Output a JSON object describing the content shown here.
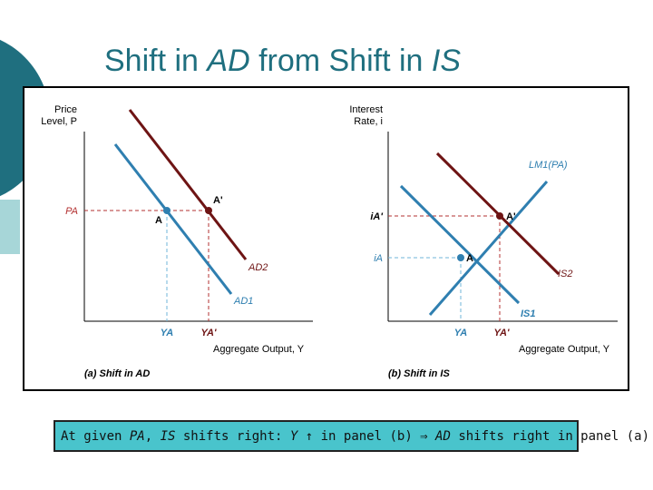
{
  "slide": {
    "title_pre": "Shift in ",
    "title_ad": "AD",
    "title_mid": " from Shift in ",
    "title_is": "IS"
  },
  "panel_a": {
    "y_axis_label_1": "Price",
    "y_axis_label_2": "Level, P",
    "x_axis_label": "Aggregate Output, Y",
    "price_label": "PA",
    "point_a": "A",
    "point_a_prime": "A'",
    "curve_ad1": "AD1",
    "curve_ad2": "AD2",
    "tick_ya": "YA",
    "tick_ya_prime": "YA'",
    "subtitle": "(a) Shift in AD"
  },
  "panel_b": {
    "y_axis_label_1": "Interest",
    "y_axis_label_2": "Rate, i",
    "x_axis_label": "Aggregate Output, Y",
    "rate_label_a": "iA",
    "rate_label_a_prime": "iA'",
    "point_a": "A",
    "point_a_prime": "A'",
    "curve_lm": "LM1(PA)",
    "curve_is1": "IS1",
    "curve_is2": "IS2",
    "tick_ya": "YA",
    "tick_ya_prime": "YA'",
    "subtitle": "(b) Shift in IS"
  },
  "caption": {
    "part1": "At given ",
    "pa": "PA",
    "part2": ", ",
    "is": "IS",
    "part3": " shifts right: ",
    "y": "Y",
    "part4": " ↑ in panel (b) ⇒ ",
    "ad": "AD",
    "part5": " shifts right in panel (a)"
  },
  "colors": {
    "teal": "#1f6f7f",
    "blue_curve": "#2f7fb0",
    "dark_red_curve": "#6e1414",
    "caption_bg": "#49c4cc",
    "dashed_red": "#b33030",
    "dashed_blue": "#6fb6d8"
  }
}
